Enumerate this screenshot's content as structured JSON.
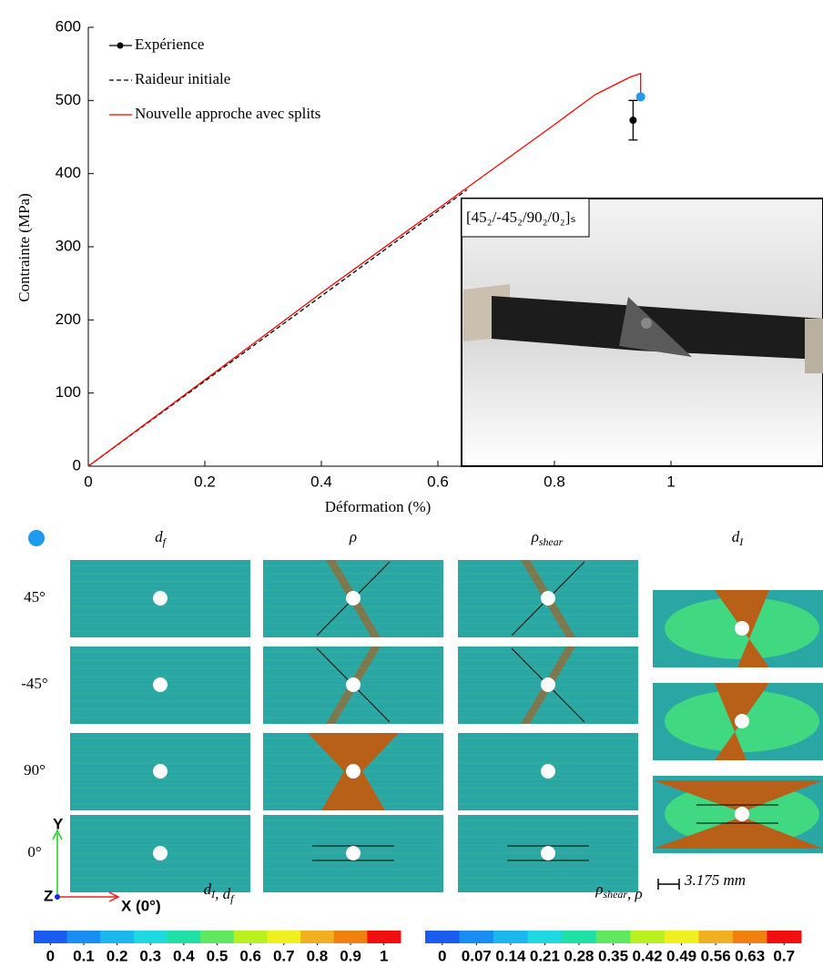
{
  "chart_data": {
    "type": "line",
    "xlabel": "Déformation (%)",
    "ylabel": "Contrainte (MPa)",
    "xlim": [
      0,
      1
    ],
    "ylim": [
      0,
      600
    ],
    "xticks": [
      0,
      0.2,
      0.4,
      0.6,
      0.8,
      1
    ],
    "yticks": [
      0,
      100,
      200,
      300,
      400,
      500,
      600
    ],
    "legend": "upper left",
    "series": [
      {
        "name": "Expérience",
        "color": "#000000",
        "style": "errorbar",
        "x": [
          0.935
        ],
        "values": [
          473
        ],
        "errors": [
          27
        ]
      },
      {
        "name": "Raideur initiale",
        "color": "#000000",
        "style": "dashed",
        "x": [
          0,
          0.65
        ],
        "values": [
          0,
          378
        ]
      },
      {
        "name": "Nouvelle approche avec splits",
        "color": "#ff0000",
        "style": "solid",
        "x": [
          0,
          0.2,
          0.4,
          0.6,
          0.8,
          0.87,
          0.9,
          0.93,
          0.945,
          0.948,
          0.948
        ],
        "values": [
          0,
          118,
          237,
          352,
          467,
          508,
          520,
          532,
          536,
          537,
          505
        ]
      }
    ],
    "marker": {
      "x": 0.948,
      "y": 505,
      "color": "#1e9bf0"
    },
    "inset_label": "[45₂/-45₂/90₂/0₂]ₛ"
  },
  "figure": {
    "columns": [
      {
        "text": "d",
        "sub": "f"
      },
      {
        "text": "ρ"
      },
      {
        "text": "ρ",
        "sub": "shear"
      },
      {
        "text": "d",
        "sub": "I"
      }
    ],
    "rows": [
      "45°",
      "-45°",
      "90°",
      "0°"
    ],
    "axes": {
      "y": "Y",
      "x": "X (0°)",
      "z": "Z"
    },
    "scale": "3.175 mm",
    "colorbars": [
      {
        "label": [
          {
            "text": "d",
            "sub": "I"
          },
          {
            "text": ", "
          },
          {
            "text": "d",
            "sub": "f"
          }
        ],
        "ticks": [
          0,
          0.1,
          0.2,
          0.3,
          0.4,
          0.5,
          0.6,
          0.7,
          0.8,
          0.9,
          1
        ],
        "colors": [
          "#1a5cf0",
          "#1a8ef0",
          "#1ab8ee",
          "#20d8e0",
          "#20e0a8",
          "#60e860",
          "#b8f020",
          "#f0f020",
          "#f0b020",
          "#f08010",
          "#f01010"
        ]
      },
      {
        "label": [
          {
            "text": "ρ",
            "sub": "shear"
          },
          {
            "text": ", "
          },
          {
            "text": "ρ"
          }
        ],
        "ticks": [
          0,
          0.07,
          0.14,
          0.21,
          0.28,
          0.35,
          0.42,
          0.49,
          0.56,
          0.63,
          0.7
        ],
        "colors": [
          "#1a5cf0",
          "#1a8ef0",
          "#1ab8ee",
          "#20d8e0",
          "#20e0a8",
          "#60e860",
          "#b8f020",
          "#f0f020",
          "#f0b020",
          "#f08010",
          "#f01010"
        ]
      }
    ]
  }
}
